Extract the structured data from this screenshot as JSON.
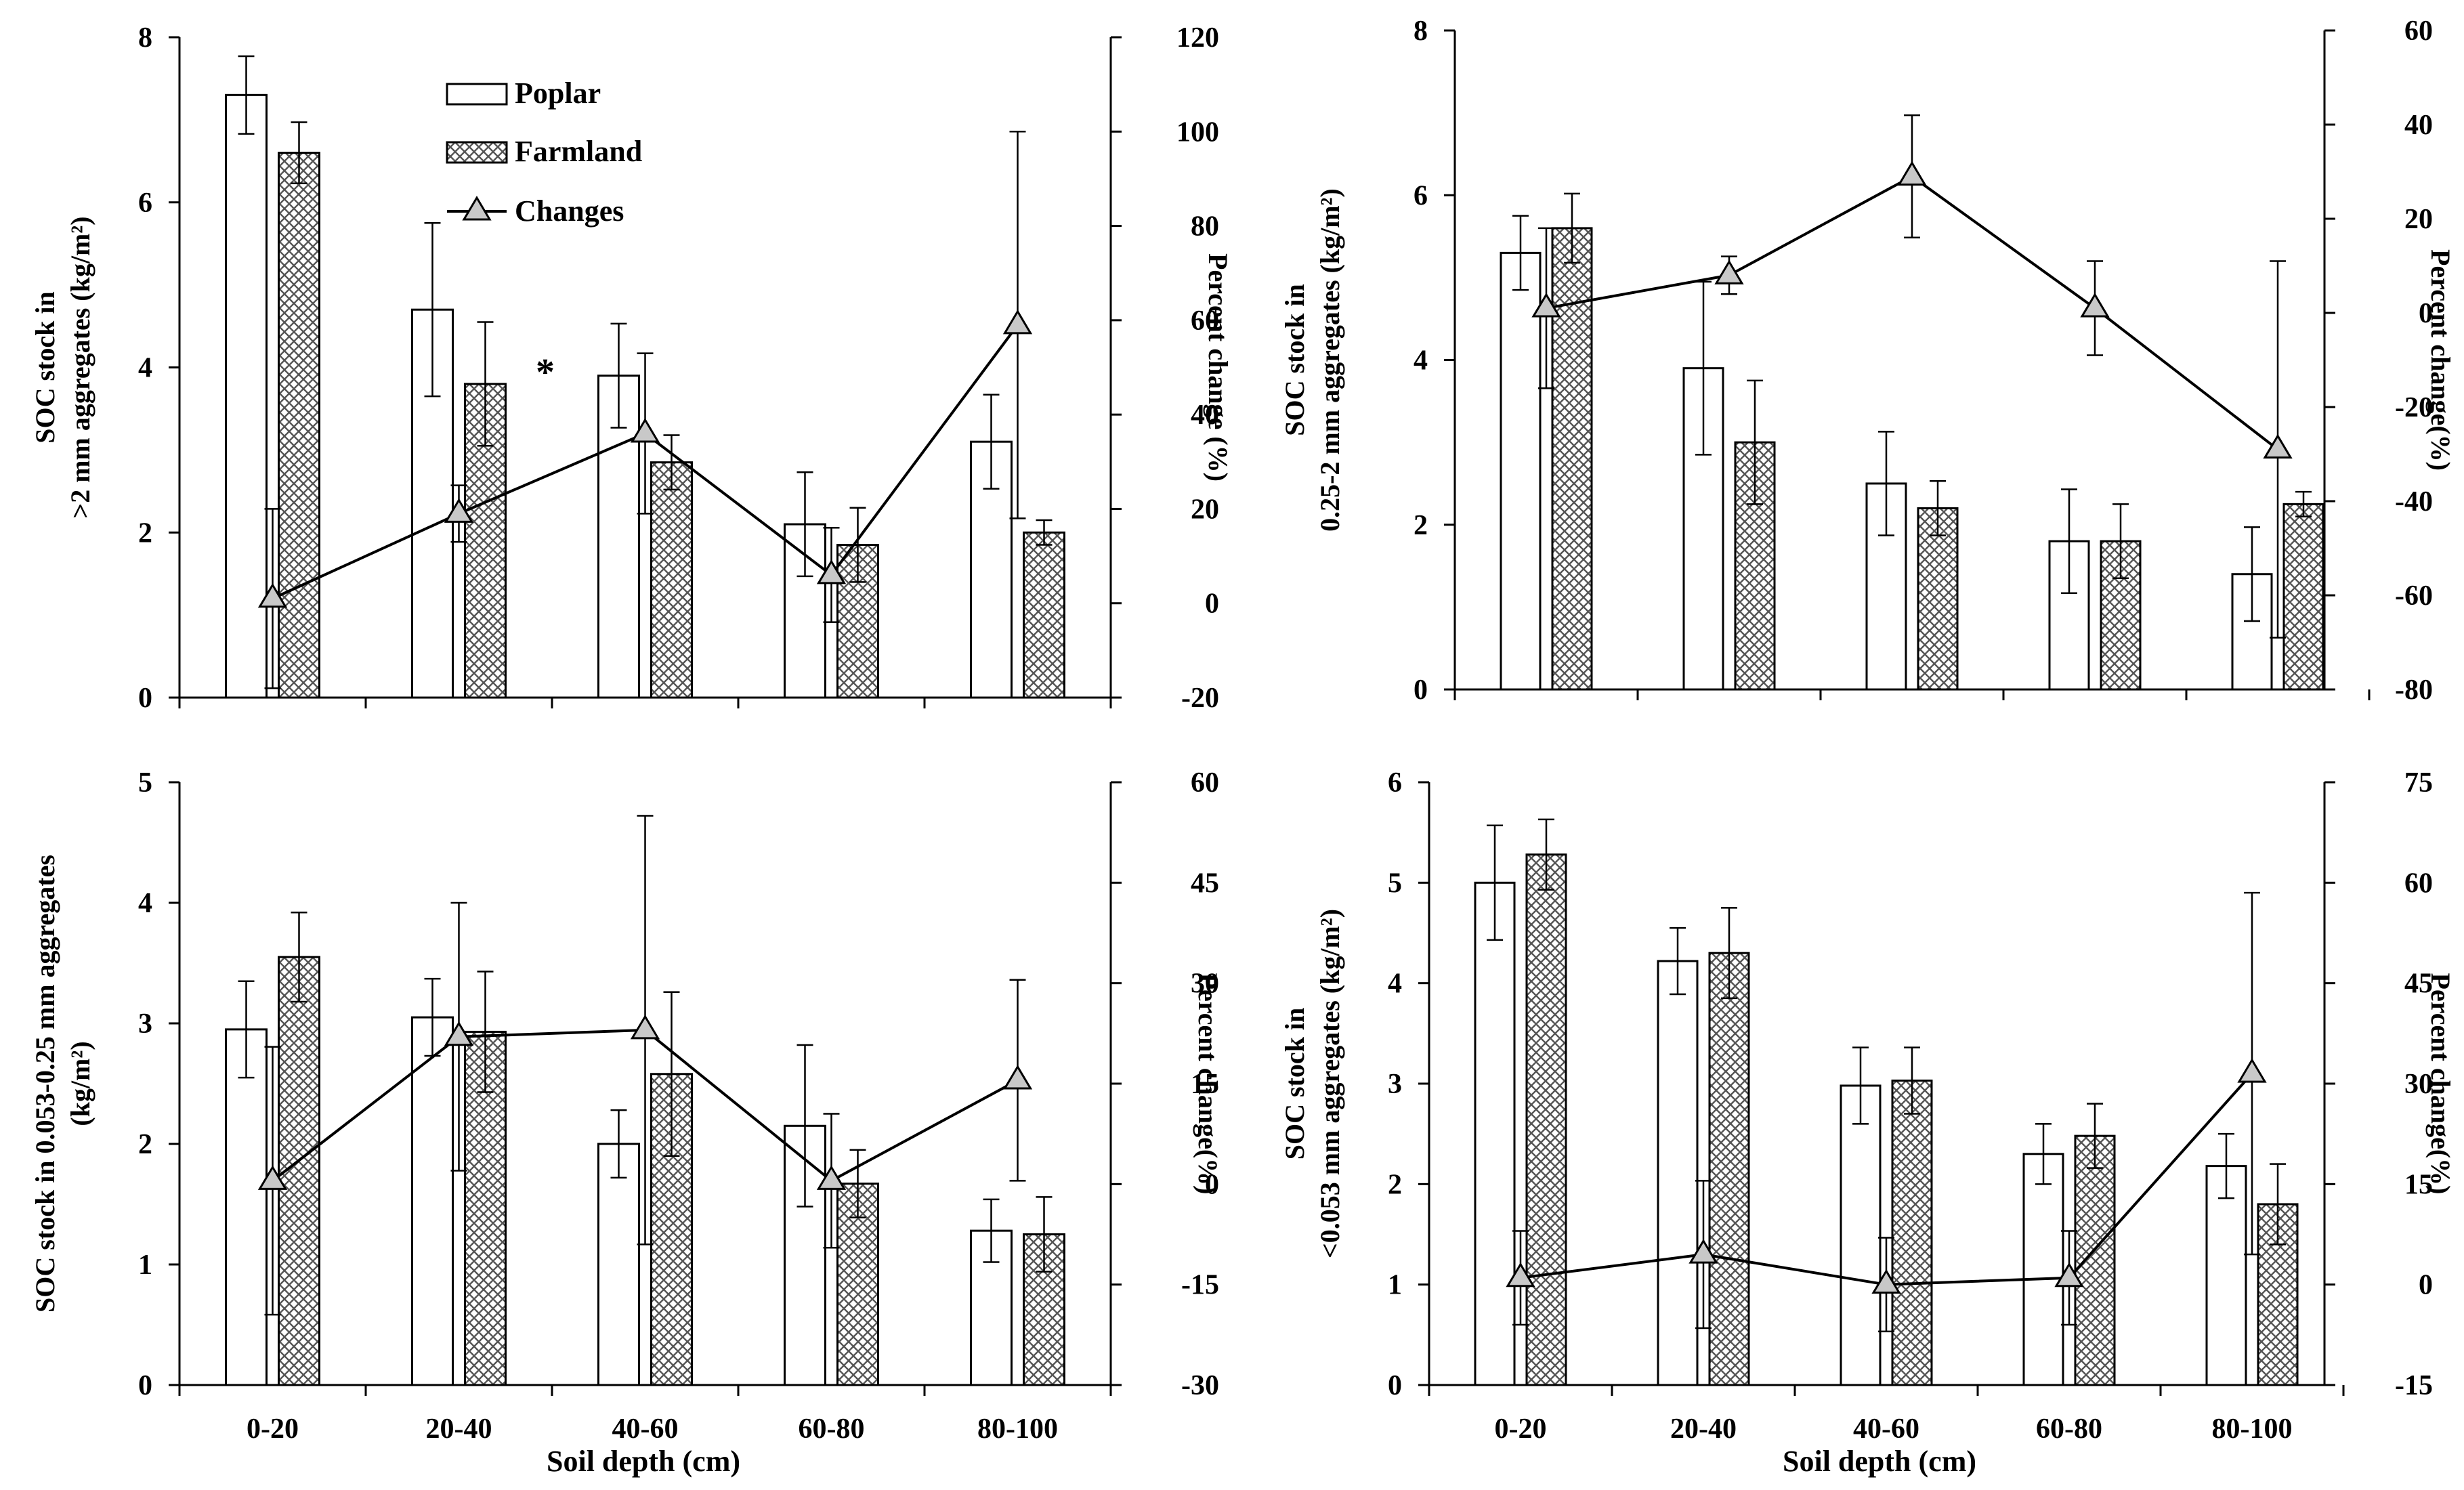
{
  "chart_data": [
    {
      "type": "bar",
      "panel": "top-left",
      "categories": [
        "0-20",
        "20-40",
        "40-60",
        "60-80",
        "80-100"
      ],
      "ylabel_lines": [
        "SOC stock in",
        ">2 mm aggregates (kg/m²)"
      ],
      "y2label": "Percent change (%)",
      "ylim": [
        0,
        8
      ],
      "yticks": [
        0,
        2,
        4,
        6,
        8
      ],
      "y2lim": [
        -20,
        120
      ],
      "y2ticks": [
        -20,
        0,
        20,
        40,
        60,
        80,
        100,
        120
      ],
      "series": [
        {
          "name": "Poplar",
          "values": [
            7.3,
            4.7,
            3.9,
            2.1,
            3.1
          ],
          "errors": [
            0.47,
            1.05,
            0.63,
            0.63,
            0.57
          ]
        },
        {
          "name": "Farmland",
          "values": [
            6.6,
            3.8,
            2.85,
            1.85,
            2.0
          ],
          "errors": [
            0.37,
            0.75,
            0.33,
            0.45,
            0.15
          ]
        }
      ],
      "changes": {
        "name": "Changes",
        "values": [
          1,
          19,
          36,
          6,
          59
        ],
        "errors": [
          19,
          6,
          17,
          10,
          41
        ]
      },
      "annotations": [
        "*"
      ],
      "legend": {
        "poplar": "Poplar",
        "farmland": "Farmland",
        "changes": "Changes",
        "position": "top-center"
      }
    },
    {
      "type": "bar",
      "panel": "top-right",
      "categories": [
        "0-20",
        "20-40",
        "40-60",
        "60-80",
        "80-100"
      ],
      "ylabel_lines": [
        "SOC stock in",
        "0.25-2 mm aggregates (kg/m²)"
      ],
      "y2label": "Percent change(%)",
      "ylim": [
        0,
        8
      ],
      "yticks": [
        0,
        2,
        4,
        6,
        8
      ],
      "y2lim": [
        -80,
        60
      ],
      "y2ticks": [
        -80,
        -60,
        -40,
        -20,
        0,
        20,
        40,
        60
      ],
      "series": [
        {
          "name": "Poplar",
          "values": [
            5.3,
            3.9,
            2.5,
            1.8,
            1.4
          ],
          "errors": [
            0.45,
            1.05,
            0.63,
            0.63,
            0.57
          ]
        },
        {
          "name": "Farmland",
          "values": [
            5.6,
            3.0,
            2.2,
            1.8,
            2.25
          ],
          "errors": [
            0.42,
            0.75,
            0.33,
            0.45,
            0.15
          ]
        }
      ],
      "changes": {
        "name": "Changes",
        "values": [
          1,
          8,
          29,
          1,
          -29
        ],
        "errors": [
          17,
          4,
          13,
          10,
          40
        ]
      }
    },
    {
      "type": "bar",
      "panel": "bottom-left",
      "categories": [
        "0-20",
        "20-40",
        "40-60",
        "60-80",
        "80-100"
      ],
      "xlabel": "Soil depth (cm)",
      "ylabel_lines": [
        "SOC stock in 0.053-0.25 mm aggregates",
        "(kg/m²)"
      ],
      "y2label": "Percent change(%)",
      "ylim": [
        0,
        5
      ],
      "yticks": [
        0,
        1,
        2,
        3,
        4,
        5
      ],
      "y2lim": [
        -30,
        60
      ],
      "y2ticks": [
        -30,
        -15,
        0,
        15,
        30,
        45,
        60
      ],
      "series": [
        {
          "name": "Poplar",
          "values": [
            2.95,
            3.05,
            2.0,
            2.15,
            1.28
          ],
          "errors": [
            0.4,
            0.32,
            0.28,
            0.67,
            0.26
          ]
        },
        {
          "name": "Farmland",
          "values": [
            3.55,
            2.93,
            2.58,
            1.67,
            1.25
          ],
          "errors": [
            0.37,
            0.5,
            0.68,
            0.28,
            0.31
          ]
        }
      ],
      "changes": {
        "name": "Changes",
        "values": [
          0.5,
          22,
          23,
          0.5,
          15.5
        ],
        "errors": [
          20,
          20,
          32,
          10,
          15
        ]
      }
    },
    {
      "type": "bar",
      "panel": "bottom-right",
      "categories": [
        "0-20",
        "20-40",
        "40-60",
        "60-80",
        "80-100"
      ],
      "xlabel": "Soil depth (cm)",
      "ylabel_lines": [
        "SOC stock in",
        "<0.053 mm aggregates (kg/m²)"
      ],
      "y2label": "Percent change(%)",
      "ylim": [
        0,
        6
      ],
      "yticks": [
        0,
        1,
        2,
        3,
        4,
        5,
        6
      ],
      "y2lim": [
        -15,
        75
      ],
      "y2ticks": [
        -15,
        0,
        15,
        30,
        45,
        60,
        75
      ],
      "series": [
        {
          "name": "Poplar",
          "values": [
            5.0,
            4.22,
            2.98,
            2.3,
            2.18
          ],
          "errors": [
            0.57,
            0.33,
            0.38,
            0.3,
            0.32
          ]
        },
        {
          "name": "Farmland",
          "values": [
            5.28,
            4.3,
            3.03,
            2.48,
            1.8
          ],
          "errors": [
            0.35,
            0.45,
            0.33,
            0.32,
            0.4
          ]
        }
      ],
      "changes": {
        "name": "Changes",
        "values": [
          1,
          4.5,
          0,
          1,
          31.5
        ],
        "errors": [
          7,
          11,
          7,
          7,
          27
        ]
      }
    }
  ]
}
